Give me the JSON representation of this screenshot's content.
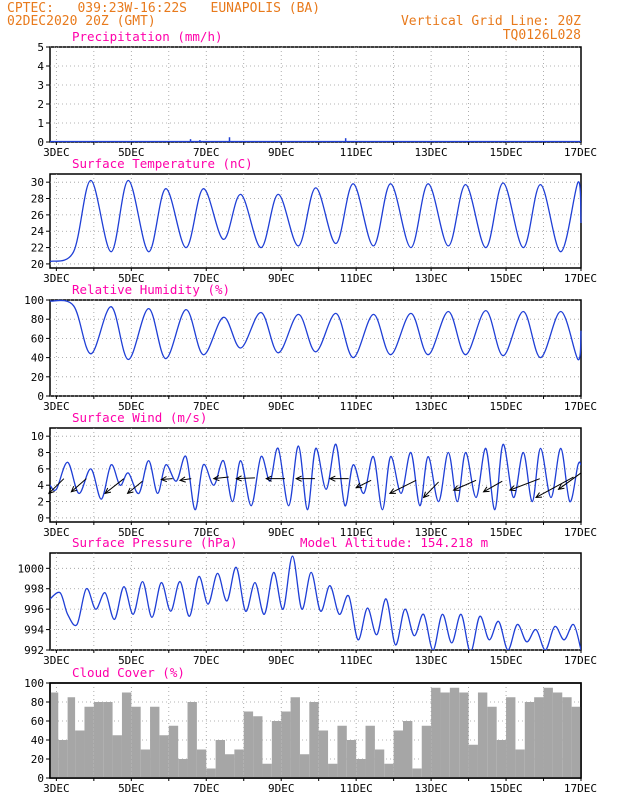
{
  "header": {
    "line1_left": "CPTEC:   039:23W-16:22S   EUNAPOLIS (BA)",
    "line2_left": "02DEC2020 20Z (GMT)",
    "line1_right": "Vertical Grid Line: 20Z",
    "line2_right": "TQ0126L028"
  },
  "colors": {
    "header": "#e87a1c",
    "title": "#ff00aa",
    "line": "#1f3fd6",
    "cloud": "#a6a6a6",
    "axis": "#000000",
    "grid": "#9a9a9a"
  },
  "x_tick_labels": [
    "3DEC",
    "5DEC",
    "7DEC",
    "9DEC",
    "11DEC",
    "13DEC",
    "15DEC",
    "17DEC"
  ],
  "chart_data": [
    {
      "type": "bar",
      "title": "Precipitation (mm/h)",
      "ylim": [
        0,
        5
      ],
      "yticks": [
        0,
        1,
        2,
        3,
        4,
        5
      ],
      "x_start": 2.83,
      "x_end": 17.0,
      "x_unit": "day of Dec 2020",
      "x": [
        6.58,
        6.83,
        7.62,
        10.72
      ],
      "values": [
        0.15,
        0.1,
        0.25,
        0.2
      ]
    },
    {
      "type": "line",
      "title": "Surface Temperature (nC)",
      "ylim": [
        19.5,
        31
      ],
      "yticks": [
        20,
        22,
        24,
        26,
        28,
        30
      ],
      "x_start": 2.83,
      "x_end": 17.0,
      "x_unit": "day of Dec 2020",
      "daily_min_x": [
        2.83,
        3.46,
        4.46,
        5.46,
        6.46,
        7.46,
        8.46,
        9.46,
        10.46,
        11.46,
        12.46,
        13.46,
        14.46,
        15.46,
        16.46
      ],
      "daily_min": [
        20.3,
        21.5,
        21.5,
        21.5,
        22.0,
        23.0,
        22.0,
        22.2,
        22.5,
        22.2,
        22.0,
        22.2,
        22.0,
        22.0,
        21.5
      ],
      "daily_max_x": [
        3.92,
        4.92,
        5.92,
        6.92,
        7.92,
        8.92,
        9.92,
        10.92,
        11.92,
        12.92,
        13.92,
        14.92,
        15.92,
        16.92
      ],
      "daily_max": [
        30.2,
        30.2,
        29.2,
        29.2,
        28.5,
        28.5,
        29.3,
        29.8,
        29.8,
        29.8,
        29.7,
        29.9,
        29.7,
        30.0
      ],
      "last": 25.0
    },
    {
      "type": "line",
      "title": "Relative Humidity (%)",
      "ylim": [
        0,
        100
      ],
      "yticks": [
        0,
        20,
        40,
        60,
        80,
        100
      ],
      "x_start": 2.83,
      "x_end": 17.0,
      "x_unit": "day of Dec 2020",
      "daily_min_x": [
        3.92,
        4.92,
        5.92,
        6.92,
        7.92,
        8.92,
        9.92,
        10.92,
        11.92,
        12.92,
        13.92,
        14.92,
        15.92,
        16.92
      ],
      "daily_min": [
        44,
        38,
        39,
        43,
        50,
        45,
        46,
        40,
        43,
        43,
        43,
        42,
        40,
        38
      ],
      "daily_max_x": [
        2.83,
        3.46,
        4.46,
        5.46,
        6.46,
        7.46,
        8.46,
        9.46,
        10.46,
        11.46,
        12.46,
        13.46,
        14.46,
        15.46,
        16.46
      ],
      "daily_max": [
        99,
        94,
        93,
        91,
        90,
        82,
        87,
        85,
        86,
        85,
        86,
        88,
        89,
        88,
        88
      ],
      "last": 68
    },
    {
      "type": "line",
      "title": "Surface Wind (m/s)",
      "ylim": [
        -0.5,
        11
      ],
      "yticks": [
        0,
        2,
        4,
        6,
        8,
        10
      ],
      "x_start": 2.83,
      "x_end": 17.0,
      "x_unit": "day of Dec 2020",
      "x": [
        2.83,
        3.0,
        3.3,
        3.6,
        3.92,
        4.2,
        4.46,
        4.7,
        4.92,
        5.2,
        5.46,
        5.7,
        5.92,
        6.2,
        6.46,
        6.7,
        6.92,
        7.2,
        7.46,
        7.7,
        7.92,
        8.2,
        8.46,
        8.7,
        8.92,
        9.2,
        9.46,
        9.7,
        9.92,
        10.2,
        10.46,
        10.7,
        10.92,
        11.2,
        11.46,
        11.7,
        11.92,
        12.2,
        12.46,
        12.7,
        12.92,
        13.2,
        13.46,
        13.7,
        13.92,
        14.2,
        14.46,
        14.7,
        14.92,
        15.2,
        15.46,
        15.7,
        15.92,
        16.2,
        16.46,
        16.7,
        16.92,
        17.0
      ],
      "values": [
        4.0,
        3.5,
        6.8,
        3.0,
        6.0,
        2.3,
        6.5,
        4.0,
        5.5,
        3.0,
        7.0,
        3.0,
        6.5,
        4.5,
        7.5,
        1.0,
        6.5,
        4.0,
        7.0,
        2.0,
        7.0,
        1.5,
        7.5,
        4.5,
        8.5,
        1.5,
        8.8,
        1.0,
        8.5,
        3.5,
        9.0,
        1.5,
        6.5,
        3.0,
        7.5,
        1.0,
        7.5,
        3.0,
        8.0,
        1.5,
        7.5,
        2.0,
        8.0,
        2.0,
        8.0,
        2.5,
        8.5,
        1.0,
        9.0,
        2.5,
        8.0,
        2.0,
        8.5,
        2.5,
        8.5,
        2.0,
        6.5,
        6.5
      ]
    },
    {
      "type": "line",
      "title": "Surface Pressure (hPa)",
      "annotation": "Model Altitude: 154.218 m",
      "ylim": [
        992,
        1001.5
      ],
      "yticks": [
        992,
        994,
        996,
        998,
        1000
      ],
      "x_start": 2.83,
      "x_end": 17.0,
      "x_unit": "day of Dec 2020",
      "x": [
        2.83,
        3.1,
        3.3,
        3.55,
        3.8,
        4.05,
        4.3,
        4.55,
        4.8,
        5.05,
        5.3,
        5.55,
        5.8,
        6.05,
        6.3,
        6.55,
        6.8,
        7.05,
        7.3,
        7.55,
        7.8,
        8.05,
        8.3,
        8.55,
        8.8,
        9.05,
        9.3,
        9.55,
        9.8,
        10.05,
        10.3,
        10.55,
        10.8,
        11.05,
        11.3,
        11.55,
        11.8,
        12.05,
        12.3,
        12.55,
        12.8,
        13.05,
        13.3,
        13.55,
        13.8,
        14.05,
        14.3,
        14.55,
        14.8,
        15.05,
        15.3,
        15.55,
        15.8,
        16.05,
        16.3,
        16.55,
        16.8,
        17.0
      ],
      "values": [
        997.0,
        997.6,
        995.5,
        994.5,
        998.0,
        996.0,
        997.6,
        995.0,
        998.2,
        995.5,
        998.7,
        995.2,
        998.6,
        995.8,
        998.7,
        995.3,
        999.2,
        996.5,
        999.5,
        996.8,
        1000.1,
        995.8,
        998.6,
        995.5,
        999.6,
        996.0,
        1001.2,
        996.0,
        999.6,
        995.8,
        998.3,
        995.5,
        997.3,
        993.0,
        996.1,
        993.5,
        997.0,
        992.5,
        996.0,
        993.4,
        995.5,
        992.0,
        995.5,
        992.7,
        995.5,
        991.8,
        995.3,
        993.0,
        994.8,
        992.0,
        994.5,
        992.8,
        994.0,
        992.0,
        994.3,
        993.0,
        994.5,
        992.0
      ]
    },
    {
      "type": "area",
      "title": "Cloud Cover (%)",
      "ylim": [
        0,
        100
      ],
      "yticks": [
        0,
        20,
        40,
        60,
        80,
        100
      ],
      "x_start": 2.83,
      "x_end": 17.0,
      "x_unit": "day of Dec 2020",
      "x": [
        2.83,
        3.05,
        3.3,
        3.5,
        3.75,
        4.0,
        4.25,
        4.5,
        4.75,
        5.0,
        5.25,
        5.5,
        5.75,
        6.0,
        6.25,
        6.5,
        6.75,
        7.0,
        7.25,
        7.5,
        7.75,
        8.0,
        8.25,
        8.5,
        8.75,
        9.0,
        9.25,
        9.5,
        9.75,
        10.0,
        10.25,
        10.5,
        10.75,
        11.0,
        11.25,
        11.5,
        11.75,
        12.0,
        12.25,
        12.5,
        12.75,
        13.0,
        13.25,
        13.5,
        13.75,
        14.0,
        14.25,
        14.5,
        14.75,
        15.0,
        15.25,
        15.5,
        15.75,
        16.0,
        16.25,
        16.5,
        16.75,
        17.0
      ],
      "values": [
        90,
        40,
        85,
        50,
        75,
        80,
        80,
        45,
        90,
        75,
        30,
        75,
        45,
        55,
        20,
        80,
        30,
        10,
        40,
        25,
        30,
        70,
        65,
        15,
        60,
        70,
        85,
        25,
        80,
        50,
        15,
        55,
        40,
        20,
        55,
        30,
        15,
        50,
        60,
        10,
        55,
        95,
        90,
        95,
        90,
        35,
        90,
        75,
        40,
        85,
        30,
        80,
        85,
        95,
        90,
        85,
        75,
        95
      ]
    }
  ]
}
